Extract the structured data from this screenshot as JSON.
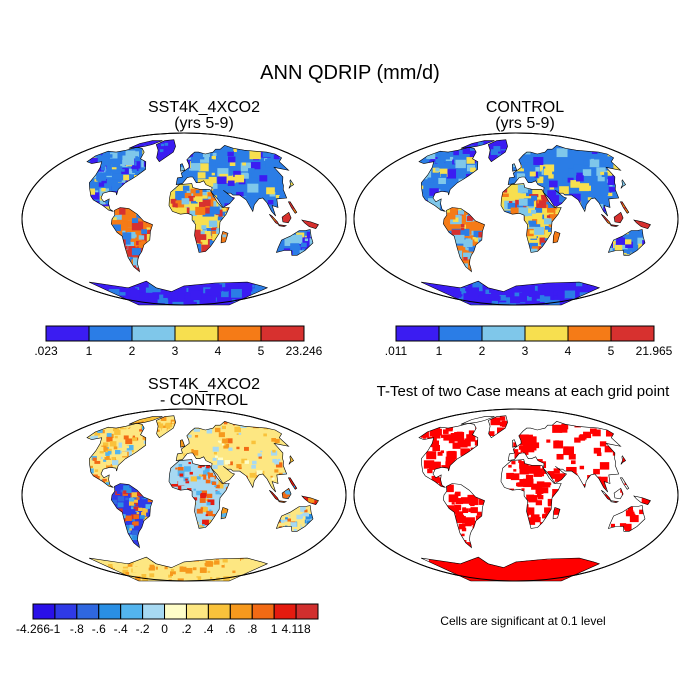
{
  "title": "ANN QDRIP (mm/d)",
  "panels": [
    {
      "id": "case",
      "title": "SST4K_4XCO2",
      "subtitle": "(yrs 5-9)"
    },
    {
      "id": "control",
      "title": "CONTROL",
      "subtitle": "(yrs 5-9)"
    },
    {
      "id": "diff",
      "title": "SST4K_4XCO2",
      "subtitle": "- CONTROL"
    },
    {
      "id": "ttest",
      "title": "T-Test of two Case means at each grid point",
      "subtitle": ""
    }
  ],
  "colorbars": {
    "case": {
      "colors": [
        "#3b1cf2",
        "#2b7de6",
        "#7fc7ea",
        "#f7df4f",
        "#f57b17",
        "#d7312f"
      ],
      "labels": [
        ".023",
        "1",
        "2",
        "3",
        "4",
        "5",
        "23.246"
      ]
    },
    "control": {
      "colors": [
        "#3b1cf2",
        "#2b7de6",
        "#7fc7ea",
        "#f7df4f",
        "#f57b17",
        "#d7312f"
      ],
      "labels": [
        ".011",
        "1",
        "2",
        "3",
        "4",
        "5",
        "21.965"
      ]
    },
    "diff": {
      "colors": [
        "#2a10e8",
        "#2f3ae6",
        "#2f67e0",
        "#2a8fe4",
        "#53b4ee",
        "#a7d9f2",
        "#fefdc8",
        "#fde782",
        "#f9c23b",
        "#f6991d",
        "#f26a14",
        "#e51b0f",
        "#d12f2e"
      ],
      "labels": [
        "-4.266",
        "-1",
        "-.8",
        "-.6",
        "-.4",
        "-.2",
        "0",
        ".2",
        ".4",
        ".6",
        ".8",
        "1",
        "4.118"
      ]
    }
  },
  "significance_color": "#ff0000",
  "note": "Cells are significant at 0.1 level"
}
